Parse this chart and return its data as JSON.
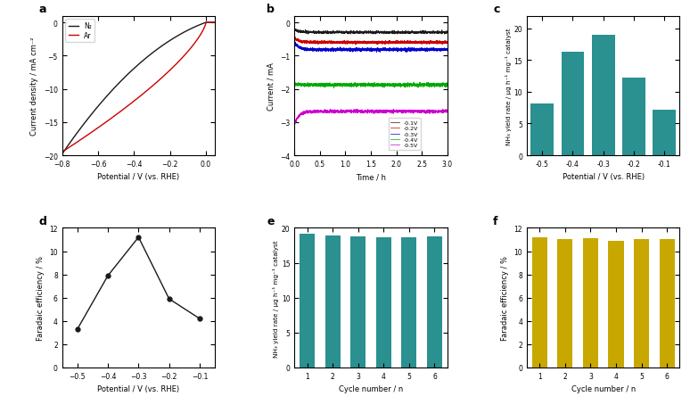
{
  "panel_a": {
    "label": "a",
    "xlabel": "Potential / V (vs. RHE)",
    "ylabel": "Current density / mA cm⁻²",
    "xlim": [
      -0.8,
      0.05
    ],
    "ylim": [
      -20,
      1
    ],
    "yticks": [
      0,
      -5,
      -10,
      -15,
      -20
    ],
    "xticks": [
      -0.8,
      -0.6,
      -0.4,
      -0.2,
      0.0
    ],
    "legend": [
      "N₂",
      "Ar"
    ],
    "line_colors": [
      "#1a1a1a",
      "#cc0000"
    ]
  },
  "panel_b": {
    "label": "b",
    "xlabel": "Time / h",
    "ylabel": "Current / mA",
    "xlim": [
      0,
      3.0
    ],
    "ylim": [
      -4,
      0.2
    ],
    "yticks": [
      0,
      -1,
      -2,
      -3,
      -4
    ],
    "xticks": [
      0.0,
      0.5,
      1.0,
      1.5,
      2.0,
      2.5,
      3.0
    ],
    "legend": [
      "-0.1V",
      "-0.2V",
      "-0.3V",
      "-0.4V",
      "-0.5V"
    ],
    "line_colors": [
      "#1a1a1a",
      "#cc0000",
      "#0000cc",
      "#00aa00",
      "#cc00cc"
    ],
    "steady_values": [
      -0.3,
      -0.6,
      -0.82,
      -1.88,
      -2.68
    ],
    "start_values": [
      -0.2,
      -0.45,
      -0.6,
      -1.85,
      -3.1
    ],
    "noise_levels": [
      0.018,
      0.02,
      0.022,
      0.025,
      0.022
    ]
  },
  "panel_c": {
    "label": "c",
    "xlabel": "Potential / V (vs. RHE)",
    "ylabel": "NH₃ yield rate / μg h⁻¹ mg⁻¹ catalyst",
    "xlim": [
      -0.55,
      -0.05
    ],
    "ylim": [
      0,
      22
    ],
    "yticks": [
      0,
      5,
      10,
      15,
      20
    ],
    "categories": [
      "-0.5",
      "-0.4",
      "-0.3",
      "-0.2",
      "-0.1"
    ],
    "xvals": [
      -0.5,
      -0.4,
      -0.3,
      -0.2,
      -0.1
    ],
    "values": [
      8.2,
      16.3,
      19.0,
      12.3,
      7.2
    ],
    "bar_color": "#2a9090",
    "bar_width": 0.075
  },
  "panel_d": {
    "label": "d",
    "xlabel": "Potential / V (vs. RHE)",
    "ylabel": "Faradaic efficiency / %",
    "xlim": [
      -0.55,
      -0.05
    ],
    "ylim": [
      0,
      12
    ],
    "yticks": [
      0,
      2,
      4,
      6,
      8,
      10,
      12
    ],
    "xticks": [
      -0.5,
      -0.4,
      -0.3,
      -0.2,
      -0.1
    ],
    "x_vals": [
      -0.5,
      -0.4,
      -0.3,
      -0.2,
      -0.1
    ],
    "y_vals": [
      3.3,
      7.9,
      11.2,
      5.9,
      4.2
    ],
    "line_color": "#1a1a1a",
    "marker": "o",
    "marker_size": 3.5
  },
  "panel_e": {
    "label": "e",
    "xlabel": "Cycle number / n",
    "ylabel": "NH₃ yield rate / μg h⁻¹ mg⁻¹ catalyst",
    "xlim": [
      0.5,
      6.5
    ],
    "ylim": [
      0,
      20
    ],
    "yticks": [
      0,
      5,
      10,
      15,
      20
    ],
    "xticks": [
      1,
      2,
      3,
      4,
      5,
      6
    ],
    "categories": [
      1,
      2,
      3,
      4,
      5,
      6
    ],
    "values": [
      19.2,
      18.9,
      18.8,
      18.6,
      18.7,
      18.8
    ],
    "bar_color": "#2a9090",
    "bar_width": 0.6
  },
  "panel_f": {
    "label": "f",
    "xlabel": "Cycle number / n",
    "ylabel": "Faradaic efficiency / %",
    "xlim": [
      0.5,
      6.5
    ],
    "ylim": [
      0,
      12
    ],
    "yticks": [
      0,
      2,
      4,
      6,
      8,
      10,
      12
    ],
    "xticks": [
      1,
      2,
      3,
      4,
      5,
      6
    ],
    "categories": [
      1,
      2,
      3,
      4,
      5,
      6
    ],
    "values": [
      11.2,
      11.0,
      11.1,
      10.9,
      11.0,
      11.0
    ],
    "bar_color": "#c8a800",
    "bar_width": 0.6
  }
}
